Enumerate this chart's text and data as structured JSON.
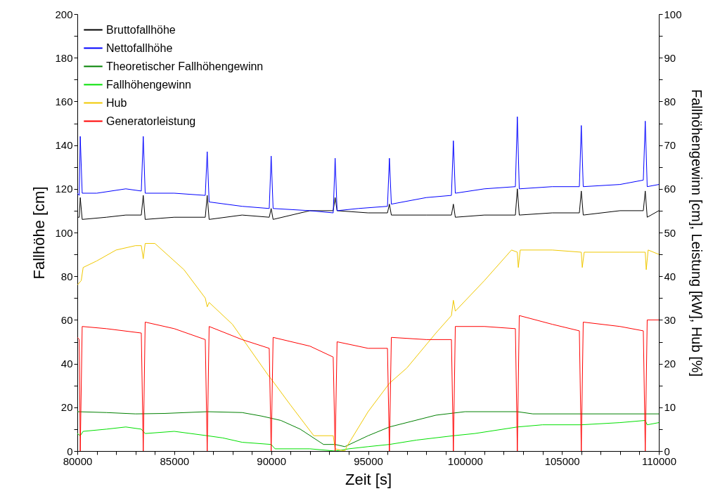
{
  "chart_data": {
    "type": "line",
    "xlabel": "Zeit [s]",
    "ylabel": "Fallhöhe [cm]",
    "y2label": "Fallhöhengewinn [cm], Leistung [kW], Hub [%]",
    "legend": "top left",
    "xlim": [
      80000,
      110000
    ],
    "ylim": [
      0,
      200
    ],
    "y2lim": [
      0,
      100
    ],
    "xticks": [
      80000,
      {
        "value": 81000,
        "label": null
      },
      {
        "value": 82000,
        "label": null
      },
      {
        "value": 83000,
        "label": null
      },
      {
        "value": 84000,
        "label": null
      },
      85000,
      {
        "value": 86000,
        "label": null
      },
      {
        "value": 87000,
        "label": null
      },
      {
        "value": 88000,
        "label": null
      },
      {
        "value": 89000,
        "label": null
      },
      90000,
      {
        "value": 91000,
        "label": null
      },
      {
        "value": 92000,
        "label": null
      },
      {
        "value": 93000,
        "label": null
      },
      {
        "value": 94000,
        "label": null
      },
      95000,
      {
        "value": 96000,
        "label": null
      },
      {
        "value": 97000,
        "label": null
      },
      {
        "value": 98000,
        "label": null
      },
      {
        "value": 99000,
        "label": null
      },
      100000,
      {
        "value": 101000,
        "label": null
      },
      {
        "value": 102000,
        "label": null
      },
      {
        "value": 103000,
        "label": null
      },
      {
        "value": 104000,
        "label": null
      },
      105000,
      {
        "value": 106000,
        "label": null
      },
      {
        "value": 107000,
        "label": null
      },
      {
        "value": 108000,
        "label": null
      },
      {
        "value": 109000,
        "label": null
      },
      110000
    ],
    "yticks": [
      0,
      {
        "value": 10,
        "label": null
      },
      20,
      {
        "value": 30,
        "label": null
      },
      40,
      {
        "value": 50,
        "label": null
      },
      60,
      {
        "value": 70,
        "label": null
      },
      80,
      {
        "value": 90,
        "label": null
      },
      100,
      {
        "value": 110,
        "label": null
      },
      120,
      {
        "value": 130,
        "label": null
      },
      140,
      {
        "value": 150,
        "label": null
      },
      160,
      {
        "value": 170,
        "label": null
      },
      180,
      {
        "value": 190,
        "label": null
      },
      200
    ],
    "y2ticks": [
      0,
      {
        "value": 5,
        "label": null
      },
      10,
      {
        "value": 15,
        "label": null
      },
      20,
      {
        "value": 25,
        "label": null
      },
      30,
      {
        "value": 35,
        "label": null
      },
      40,
      {
        "value": 45,
        "label": null
      },
      50,
      {
        "value": 55,
        "label": null
      },
      60,
      {
        "value": 65,
        "label": null
      },
      70,
      {
        "value": 75,
        "label": null
      },
      80,
      {
        "value": 85,
        "label": null
      },
      90,
      {
        "value": 95,
        "label": null
      },
      100
    ],
    "series": [
      {
        "name": "Bruttofallhöhe",
        "color": "#000000",
        "x": [
          80000,
          80100,
          80150,
          80250,
          81500,
          82500,
          83300,
          83400,
          83500,
          85000,
          86600,
          86700,
          86800,
          88500,
          89900,
          90000,
          90100,
          92000,
          93200,
          93300,
          93400,
          95000,
          96000,
          96100,
          96200,
          98000,
          99300,
          99400,
          99500,
          101000,
          102600,
          102700,
          102800,
          104500,
          105900,
          106000,
          106100,
          108000,
          109200,
          109300,
          109400,
          110000
        ],
        "values": [
          107,
          107,
          116,
          106,
          107,
          108,
          108,
          117,
          106,
          107,
          107,
          117,
          106,
          108,
          107,
          111,
          106,
          110,
          110,
          116,
          110,
          109,
          109,
          113,
          108,
          108,
          108,
          113,
          107,
          108,
          108,
          120,
          108,
          109,
          109,
          119,
          108,
          110,
          110,
          119,
          107,
          110
        ]
      },
      {
        "name": "Nettofallhöhe",
        "color": "#0000ff",
        "x": [
          80000,
          80100,
          80150,
          80250,
          81000,
          82500,
          83300,
          83400,
          83500,
          85000,
          86600,
          86700,
          86800,
          88500,
          89900,
          90000,
          90100,
          92000,
          93200,
          93300,
          93400,
          94500,
          96000,
          96100,
          96200,
          98000,
          99300,
          99400,
          99500,
          101000,
          102600,
          102700,
          102800,
          104500,
          105900,
          106000,
          106100,
          108000,
          109200,
          109300,
          109400,
          110000
        ],
        "values": [
          118,
          117,
          144,
          118,
          118,
          120,
          119,
          144,
          118,
          118,
          117,
          137,
          114,
          112,
          111,
          135,
          111,
          110,
          109,
          134,
          110,
          111,
          112,
          134,
          113,
          116,
          117,
          142,
          118,
          120,
          121,
          153,
          120,
          121,
          121,
          149,
          121,
          122,
          124,
          151,
          121,
          122
        ]
      },
      {
        "name": "Theoretischer Fallhöhengewinn",
        "color": "#008000",
        "axis": "y2",
        "x": [
          80000,
          81500,
          83000,
          84500,
          86700,
          88500,
          89500,
          90500,
          91500,
          92700,
          93300,
          93800,
          95000,
          96100,
          98500,
          100000,
          102700,
          103500,
          110000
        ],
        "values": [
          9,
          8.8,
          8.5,
          8.6,
          9,
          8.8,
          8,
          7,
          5,
          1.5,
          1.5,
          1,
          3.5,
          5.5,
          8.2,
          9,
          9,
          8.5,
          8.5
        ]
      },
      {
        "name": "Fallhöhengewinn",
        "color": "#00e000",
        "axis": "y2",
        "x": [
          80000,
          80150,
          80300,
          81500,
          82500,
          83300,
          83500,
          85000,
          86700,
          87500,
          88500,
          90000,
          90200,
          92000,
          93300,
          94000,
          95000,
          96100,
          97500,
          99400,
          100500,
          102700,
          104000,
          106000,
          108000,
          109300,
          109400,
          110000
        ],
        "values": [
          4,
          3.5,
          4.5,
          5,
          5.5,
          5,
          4,
          4.5,
          3.5,
          3,
          2,
          1.5,
          0.5,
          0.5,
          0,
          0.5,
          1,
          1.5,
          2.5,
          3.5,
          4,
          5.5,
          6,
          6,
          6.5,
          7,
          6,
          6.5
        ]
      },
      {
        "name": "Hub",
        "color": "#f0c800",
        "axis": "y2",
        "x": [
          80000,
          80200,
          80300,
          81000,
          82000,
          83000,
          83300,
          83400,
          83500,
          84000,
          85500,
          86600,
          86700,
          86800,
          88000,
          89900,
          90000,
          91000,
          92200,
          93200,
          93300,
          93800,
          93900,
          95000,
          96100,
          97000,
          98500,
          99300,
          99400,
          99500,
          101000,
          102400,
          102700,
          102750,
          102850,
          104500,
          106000,
          106050,
          106150,
          108000,
          109300,
          109350,
          109450,
          110000
        ],
        "values": [
          38,
          39,
          42,
          43.5,
          46,
          47,
          47,
          44,
          47.5,
          47.5,
          41.5,
          35,
          33,
          34,
          29,
          17,
          16.5,
          10.5,
          3.5,
          3.5,
          0.5,
          0,
          1,
          9,
          15.5,
          19,
          27,
          31,
          34.5,
          32,
          39,
          46,
          45.5,
          42,
          46,
          46,
          45.5,
          42,
          45.5,
          45.5,
          45.5,
          41.5,
          46,
          45
        ]
      },
      {
        "name": "Generatorleistung",
        "color": "#ff0000",
        "axis": "y2",
        "x": [
          80000,
          80100,
          80150,
          80250,
          81500,
          83300,
          83400,
          83500,
          85000,
          86600,
          86700,
          86800,
          88500,
          89900,
          90000,
          90100,
          92000,
          93200,
          93300,
          93400,
          95000,
          96000,
          96100,
          96200,
          98000,
          99300,
          99400,
          99500,
          101000,
          102600,
          102700,
          102800,
          104500,
          105900,
          106000,
          106100,
          108000,
          109200,
          109300,
          109400,
          110000
        ],
        "values": [
          26,
          25.5,
          0,
          28.5,
          28,
          27,
          0,
          29.5,
          28,
          25.5,
          0,
          28.5,
          25.5,
          23.5,
          0,
          26,
          24,
          21.5,
          0,
          25,
          23.5,
          23.5,
          0,
          26,
          25.5,
          25.5,
          0,
          28.5,
          28.5,
          28,
          0,
          31,
          29,
          27.5,
          0,
          29.5,
          28.5,
          27.5,
          0,
          30,
          30
        ]
      }
    ]
  }
}
